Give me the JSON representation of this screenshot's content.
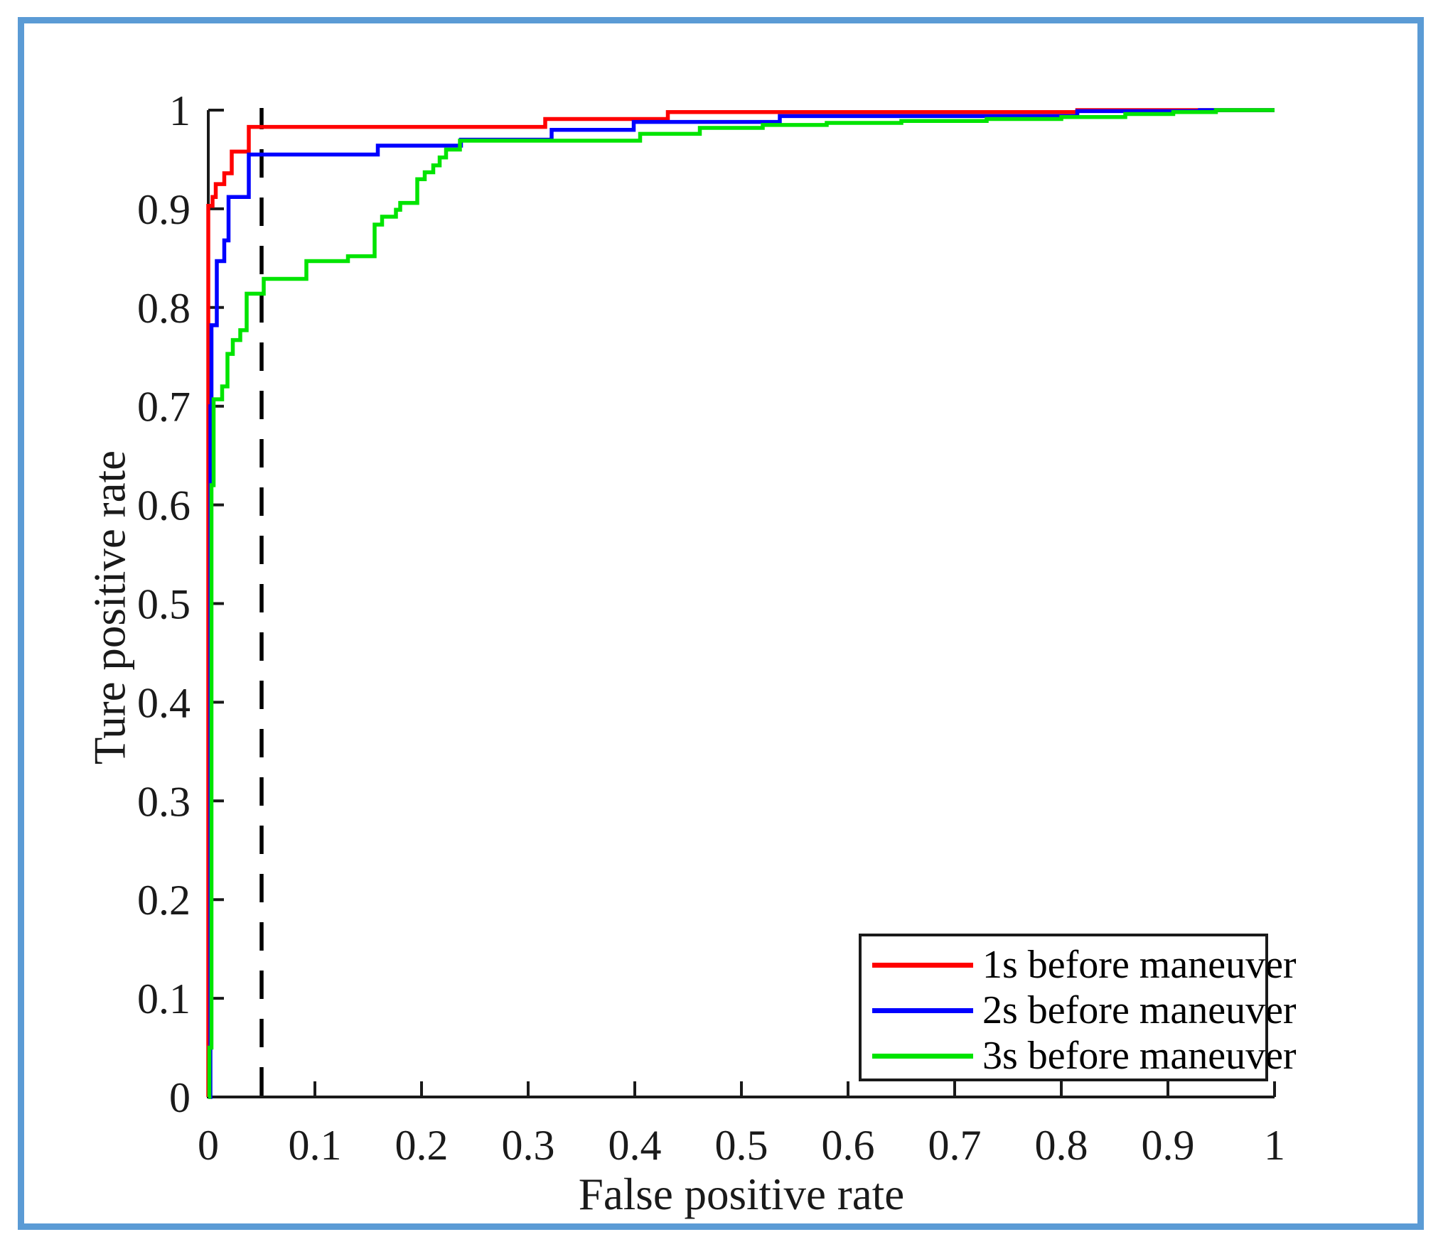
{
  "figure": {
    "background": "#FFFFFF",
    "border_color": "#5B9BD5",
    "axis_color": "#1a1a1a",
    "title": ""
  },
  "chart_data": {
    "type": "line",
    "subtype": "roc-step-curves",
    "title": "",
    "xlabel": "False positive rate",
    "ylabel": "Ture positive rate",
    "xlim": [
      0,
      1
    ],
    "ylim": [
      0,
      1
    ],
    "grid": false,
    "legend_position": "inside-lower-right",
    "xticks": [
      0,
      0.1,
      0.2,
      0.3,
      0.4,
      0.5,
      0.6,
      0.7,
      0.8,
      0.9,
      1
    ],
    "yticks": [
      0,
      0.1,
      0.2,
      0.3,
      0.4,
      0.5,
      0.6,
      0.7,
      0.8,
      0.9,
      1
    ],
    "xtick_labels": [
      "0",
      "0.1",
      "0.2",
      "0.3",
      "0.4",
      "0.5",
      "0.6",
      "0.7",
      "0.8",
      "0.9",
      "1"
    ],
    "ytick_labels": [
      "0",
      "0.1",
      "0.2",
      "0.3",
      "0.4",
      "0.5",
      "0.6",
      "0.7",
      "0.8",
      "0.9",
      "1"
    ],
    "reference_line": {
      "orientation": "vertical",
      "x": 0.05,
      "style": "dashed",
      "color": "#000000"
    },
    "series": [
      {
        "name": "1s before maneuver",
        "color": "#FF0000",
        "points": [
          [
            0,
            0
          ],
          [
            0,
            0.903
          ],
          [
            0.004,
            0.903
          ],
          [
            0.004,
            0.912
          ],
          [
            0.007,
            0.912
          ],
          [
            0.007,
            0.925
          ],
          [
            0.015,
            0.925
          ],
          [
            0.015,
            0.936
          ],
          [
            0.022,
            0.936
          ],
          [
            0.022,
            0.958
          ],
          [
            0.038,
            0.958
          ],
          [
            0.038,
            0.983
          ],
          [
            0.316,
            0.983
          ],
          [
            0.316,
            0.991
          ],
          [
            0.431,
            0.991
          ],
          [
            0.431,
            0.998
          ],
          [
            0.815,
            0.998
          ],
          [
            0.815,
            1
          ],
          [
            1,
            1
          ]
        ]
      },
      {
        "name": "2s before maneuver",
        "color": "#0000FF",
        "points": [
          [
            0,
            0
          ],
          [
            0.002,
            0
          ],
          [
            0.002,
            0.7
          ],
          [
            0.003,
            0.7
          ],
          [
            0.003,
            0.782
          ],
          [
            0.008,
            0.782
          ],
          [
            0.008,
            0.847
          ],
          [
            0.015,
            0.847
          ],
          [
            0.015,
            0.868
          ],
          [
            0.019,
            0.868
          ],
          [
            0.019,
            0.912
          ],
          [
            0.038,
            0.912
          ],
          [
            0.038,
            0.955
          ],
          [
            0.159,
            0.955
          ],
          [
            0.159,
            0.964
          ],
          [
            0.237,
            0.964
          ],
          [
            0.237,
            0.97
          ],
          [
            0.322,
            0.97
          ],
          [
            0.322,
            0.98
          ],
          [
            0.399,
            0.98
          ],
          [
            0.399,
            0.988
          ],
          [
            0.536,
            0.988
          ],
          [
            0.536,
            0.994
          ],
          [
            0.815,
            0.994
          ],
          [
            0.815,
            0.999
          ],
          [
            0.93,
            0.999
          ],
          [
            0.93,
            1
          ],
          [
            1,
            1
          ]
        ]
      },
      {
        "name": "3s before maneuver",
        "color": "#00E400",
        "points": [
          [
            0,
            0
          ],
          [
            0.001,
            0
          ],
          [
            0.001,
            0.05
          ],
          [
            0.003,
            0.05
          ],
          [
            0.003,
            0.62
          ],
          [
            0.005,
            0.62
          ],
          [
            0.005,
            0.707
          ],
          [
            0.013,
            0.707
          ],
          [
            0.013,
            0.72
          ],
          [
            0.018,
            0.72
          ],
          [
            0.018,
            0.753
          ],
          [
            0.023,
            0.753
          ],
          [
            0.023,
            0.767
          ],
          [
            0.03,
            0.767
          ],
          [
            0.03,
            0.777
          ],
          [
            0.036,
            0.777
          ],
          [
            0.036,
            0.814
          ],
          [
            0.052,
            0.814
          ],
          [
            0.052,
            0.829
          ],
          [
            0.092,
            0.829
          ],
          [
            0.092,
            0.847
          ],
          [
            0.131,
            0.847
          ],
          [
            0.131,
            0.852
          ],
          [
            0.156,
            0.852
          ],
          [
            0.156,
            0.884
          ],
          [
            0.163,
            0.884
          ],
          [
            0.163,
            0.892
          ],
          [
            0.176,
            0.892
          ],
          [
            0.176,
            0.899
          ],
          [
            0.18,
            0.899
          ],
          [
            0.18,
            0.906
          ],
          [
            0.196,
            0.906
          ],
          [
            0.196,
            0.93
          ],
          [
            0.203,
            0.93
          ],
          [
            0.203,
            0.937
          ],
          [
            0.211,
            0.937
          ],
          [
            0.211,
            0.944
          ],
          [
            0.217,
            0.944
          ],
          [
            0.217,
            0.952
          ],
          [
            0.223,
            0.952
          ],
          [
            0.223,
            0.96
          ],
          [
            0.236,
            0.96
          ],
          [
            0.236,
            0.969
          ],
          [
            0.405,
            0.969
          ],
          [
            0.405,
            0.976
          ],
          [
            0.461,
            0.976
          ],
          [
            0.461,
            0.982
          ],
          [
            0.52,
            0.982
          ],
          [
            0.52,
            0.985
          ],
          [
            0.58,
            0.985
          ],
          [
            0.58,
            0.987
          ],
          [
            0.65,
            0.987
          ],
          [
            0.65,
            0.989
          ],
          [
            0.73,
            0.989
          ],
          [
            0.73,
            0.991
          ],
          [
            0.8,
            0.991
          ],
          [
            0.8,
            0.993
          ],
          [
            0.86,
            0.993
          ],
          [
            0.86,
            0.996
          ],
          [
            0.905,
            0.996
          ],
          [
            0.905,
            0.998
          ],
          [
            0.945,
            0.998
          ],
          [
            0.945,
            1
          ],
          [
            1,
            1
          ]
        ]
      }
    ]
  },
  "legend": {
    "items": [
      {
        "label": "1s before maneuver",
        "color": "#FF0000"
      },
      {
        "label": "2s before maneuver",
        "color": "#0000FF"
      },
      {
        "label": "3s before maneuver",
        "color": "#00E400"
      }
    ]
  }
}
